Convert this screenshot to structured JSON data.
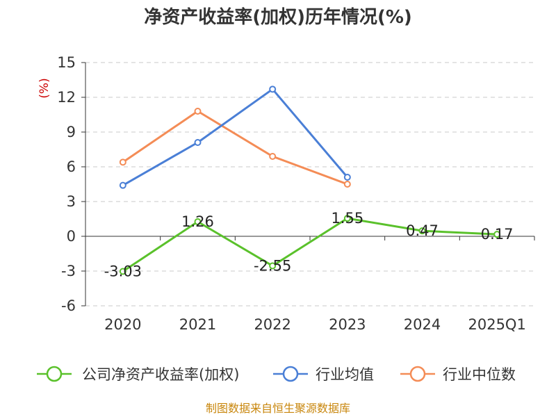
{
  "chart_data": {
    "type": "line",
    "title": "净资产收益率(加权)历年情况(%)",
    "ylabel": "(%)",
    "categories": [
      "2020",
      "2021",
      "2022",
      "2023",
      "2024",
      "2025Q1"
    ],
    "ylim": [
      -6,
      15
    ],
    "yticks": [
      -6,
      -3,
      0,
      3,
      6,
      9,
      12,
      15
    ],
    "ytick_labels": [
      "-6",
      "-3",
      "0",
      "3",
      "6",
      "9",
      "12",
      "15"
    ],
    "grid": true,
    "legend_position": "bottom",
    "series": [
      {
        "name": "公司净资产收益率(加权)",
        "color": "#5ac12b",
        "values": [
          -3.03,
          1.26,
          -2.55,
          1.55,
          0.47,
          0.17
        ],
        "labels": [
          "-3.03",
          "1.26",
          "-2.55",
          "1.55",
          "0.47",
          "0.17"
        ]
      },
      {
        "name": "行业均值",
        "color": "#4a7fd6",
        "values": [
          4.4,
          8.1,
          12.7,
          5.1,
          null,
          null
        ]
      },
      {
        "name": "行业中位数",
        "color": "#f48c56",
        "values": [
          6.4,
          10.8,
          6.9,
          4.5,
          null,
          null
        ]
      }
    ]
  },
  "source": "制图数据来自恒生聚源数据库"
}
